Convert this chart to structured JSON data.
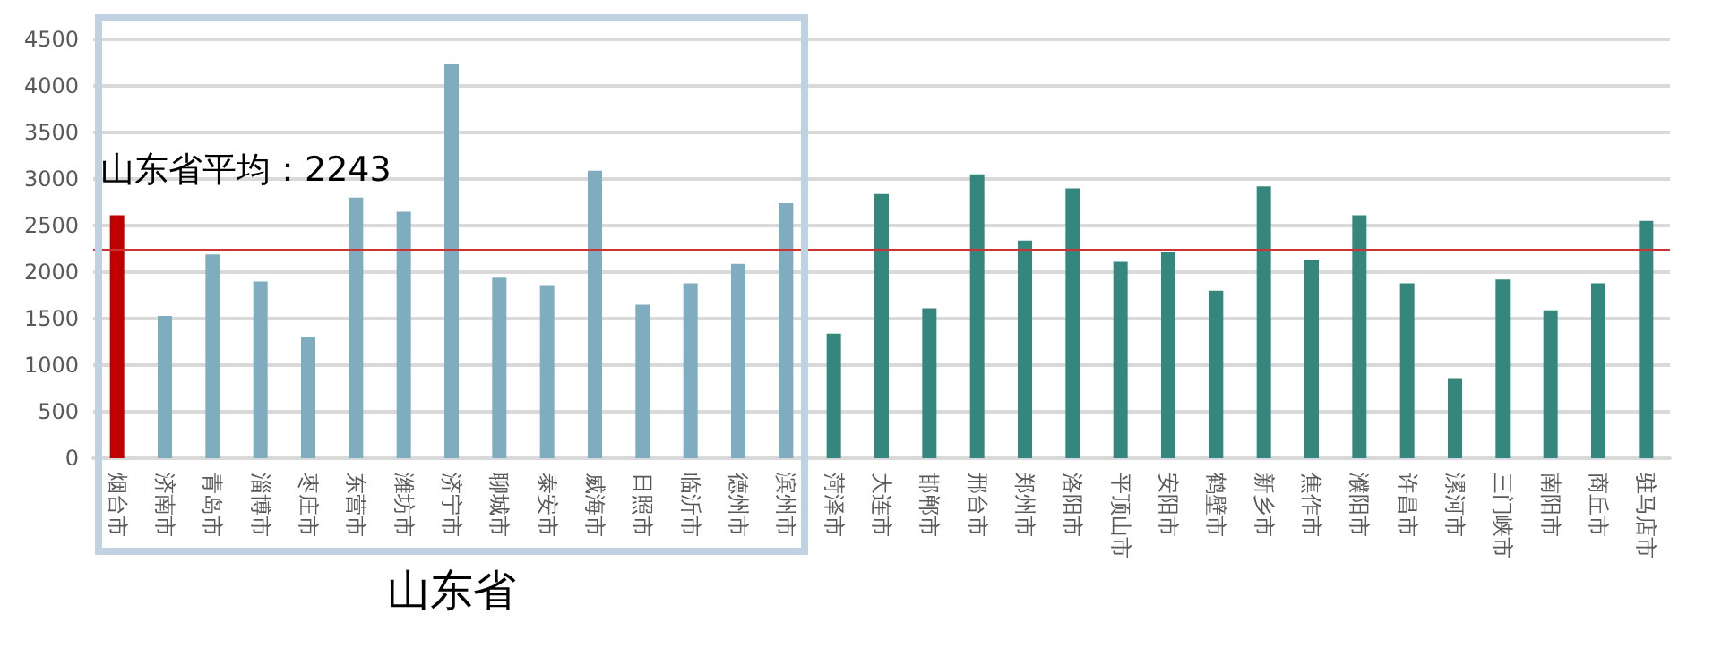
{
  "chart_data": {
    "type": "bar",
    "categories": [
      "烟台市",
      "济南市",
      "青岛市",
      "淄博市",
      "枣庄市",
      "东营市",
      "潍坊市",
      "济宁市",
      "聊城市",
      "泰安市",
      "威海市",
      "日照市",
      "临沂市",
      "德州市",
      "滨州市",
      "菏泽市",
      "大连市",
      "邯郸市",
      "邢台市",
      "郑州市",
      "洛阳市",
      "平顶山市",
      "安阳市",
      "鹤壁市",
      "新乡市",
      "焦作市",
      "濮阳市",
      "许昌市",
      "漯河市",
      "三门峡市",
      "南阳市",
      "商丘市",
      "驻马店市"
    ],
    "values": [
      2610,
      1530,
      2190,
      1900,
      1300,
      2800,
      2650,
      4240,
      1940,
      1860,
      3090,
      1650,
      1880,
      2090,
      2740,
      1340,
      2840,
      1610,
      3050,
      2340,
      2900,
      2110,
      2220,
      1800,
      2920,
      2130,
      2610,
      1880,
      860,
      1920,
      1590,
      1880,
      2550
    ],
    "colors": [
      "#c00000",
      "#7facbf",
      "#7facbf",
      "#7facbf",
      "#7facbf",
      "#7facbf",
      "#7facbf",
      "#7facbf",
      "#7facbf",
      "#7facbf",
      "#7facbf",
      "#7facbf",
      "#7facbf",
      "#7facbf",
      "#7facbf",
      "#35877d",
      "#35877d",
      "#35877d",
      "#35877d",
      "#35877d",
      "#35877d",
      "#35877d",
      "#35877d",
      "#35877d",
      "#35877d",
      "#35877d",
      "#35877d",
      "#35877d",
      "#35877d",
      "#35877d",
      "#35877d",
      "#35877d",
      "#35877d"
    ],
    "ylim": [
      0,
      4500
    ],
    "yticks": [
      0,
      500,
      1000,
      1500,
      2000,
      2500,
      3000,
      3500,
      4000,
      4500
    ],
    "grid": "y",
    "ref_lines": [
      {
        "axis": "y",
        "value": 2243,
        "label": "山东省平均：2243",
        "color": "#cc3333"
      }
    ],
    "annotations": [
      "山东省"
    ]
  }
}
